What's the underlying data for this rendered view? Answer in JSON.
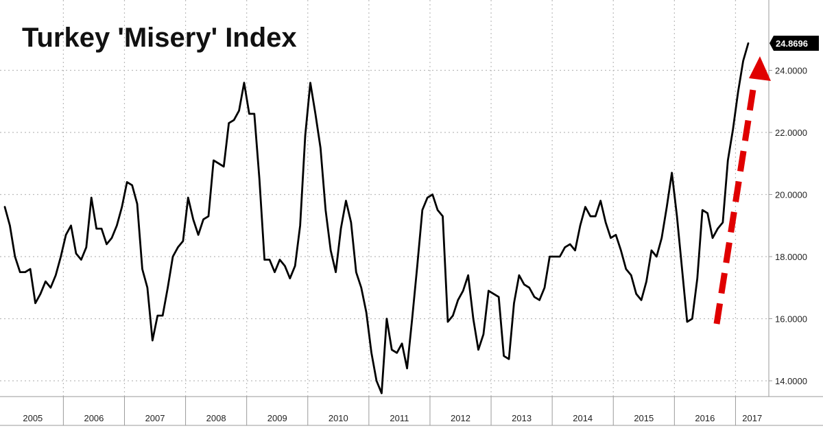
{
  "chart_data": {
    "type": "line",
    "title": "Turkey 'Misery' Index",
    "xlabel": "",
    "ylabel": "",
    "ylim": [
      13.5,
      25.5
    ],
    "grid": true,
    "y_ticks": [
      "14.0000",
      "16.0000",
      "18.0000",
      "20.0000",
      "22.0000",
      "24.0000"
    ],
    "x_ticks": [
      "2005",
      "2006",
      "2007",
      "2008",
      "2009",
      "2010",
      "2011",
      "2012",
      "2013",
      "2014",
      "2015",
      "2016",
      "2017"
    ],
    "last_value_label": "24.8696",
    "annotation": "red dashed upward arrow",
    "colors": {
      "line": "#000000",
      "arrow": "#e00000",
      "grid": "#bbbbbb",
      "last_label_bg": "#000000"
    },
    "series": [
      {
        "x_start": "2005-01",
        "frequency": "monthly",
        "values": [
          19.6,
          19.0,
          18.0,
          17.5,
          17.5,
          17.6,
          16.5,
          16.8,
          17.2,
          17.0,
          17.4,
          18.0,
          18.7,
          19.0,
          18.1,
          17.9,
          18.3,
          19.9,
          18.9,
          18.9,
          18.4,
          18.6,
          19.0,
          19.6,
          20.4,
          20.3,
          19.7,
          17.6,
          17.0,
          15.3,
          16.1,
          16.1,
          17.0,
          18.0,
          18.3,
          18.5,
          19.9,
          19.2,
          18.7,
          19.2,
          19.3,
          21.1,
          21.0,
          20.9,
          22.3,
          22.4,
          22.7,
          23.6,
          22.6,
          22.6,
          20.5,
          17.9,
          17.9,
          17.5,
          17.9,
          17.7,
          17.3,
          17.7,
          19.0,
          21.9,
          23.6,
          22.6,
          21.5,
          19.5,
          18.2,
          17.5,
          18.9,
          19.8,
          19.1,
          17.5,
          17.0,
          16.2,
          14.9,
          14.0,
          13.6,
          16.0,
          15.0,
          14.9,
          15.2,
          14.4,
          16.0,
          17.7,
          19.5,
          19.9,
          20.0,
          19.5,
          19.3,
          15.9,
          16.1,
          16.6,
          16.9,
          17.4,
          16.0,
          15.0,
          15.5,
          16.9,
          16.8,
          16.7,
          14.8,
          14.7,
          16.5,
          17.4,
          17.1,
          17.0,
          16.7,
          16.6,
          17.0,
          18.0,
          18.0,
          18.0,
          18.3,
          18.4,
          18.2,
          19.0,
          19.6,
          19.3,
          19.3,
          19.8,
          19.1,
          18.6,
          18.7,
          18.2,
          17.6,
          17.4,
          16.8,
          16.6,
          17.2,
          18.2,
          18.0,
          18.6,
          19.6,
          20.7,
          19.3,
          17.6,
          15.9,
          16.0,
          17.3,
          19.5,
          19.4,
          18.6,
          18.9,
          19.1,
          21.1,
          22.1,
          23.3,
          24.3,
          24.8696
        ]
      }
    ]
  }
}
